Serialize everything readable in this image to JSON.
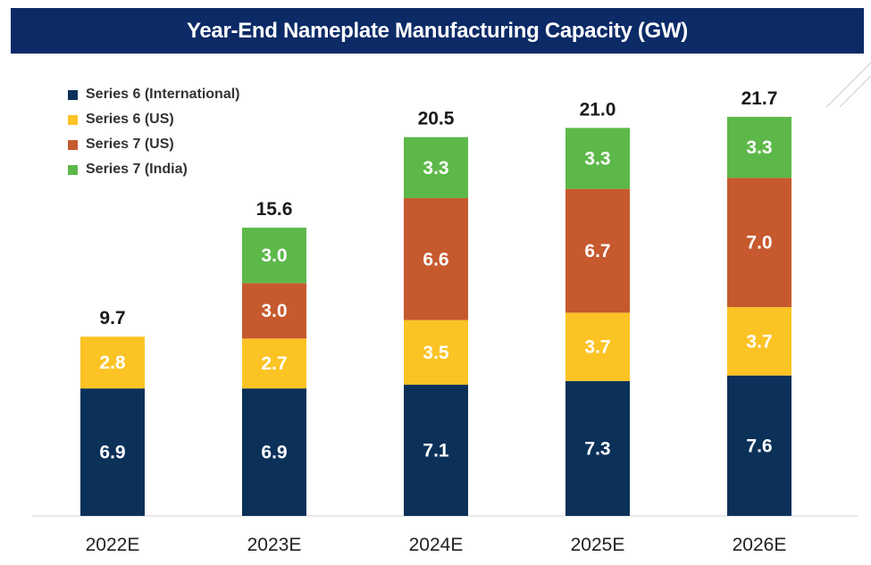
{
  "title": "Year-End Nameplate Manufacturing Capacity (GW)",
  "colors": {
    "title_bg": "#0b2a66",
    "series6_international": "#0b3159",
    "series6_us": "#fcc325",
    "series7_us": "#c6592e",
    "series7_india": "#5db84a"
  },
  "chart_data": {
    "type": "bar",
    "stacked": true,
    "title": "Year-End Nameplate Manufacturing Capacity (GW)",
    "xlabel": "",
    "ylabel": "",
    "legend_position": "top-left",
    "grid": false,
    "categories": [
      "2022E",
      "2023E",
      "2024E",
      "2025E",
      "2026E"
    ],
    "series": [
      {
        "name": "Series 6 (International)",
        "values": [
          6.9,
          6.9,
          7.1,
          7.3,
          7.6
        ]
      },
      {
        "name": "Series 6 (US)",
        "values": [
          2.8,
          2.7,
          3.5,
          3.7,
          3.7
        ]
      },
      {
        "name": "Series 7 (US)",
        "values": [
          null,
          3.0,
          6.6,
          6.7,
          7.0
        ]
      },
      {
        "name": "Series 7 (India)",
        "values": [
          null,
          3.0,
          3.3,
          3.3,
          3.3
        ]
      }
    ],
    "totals": [
      "9.7",
      "15.6",
      "20.5",
      "21.0",
      "21.7"
    ],
    "ylim": [
      0,
      22
    ]
  }
}
